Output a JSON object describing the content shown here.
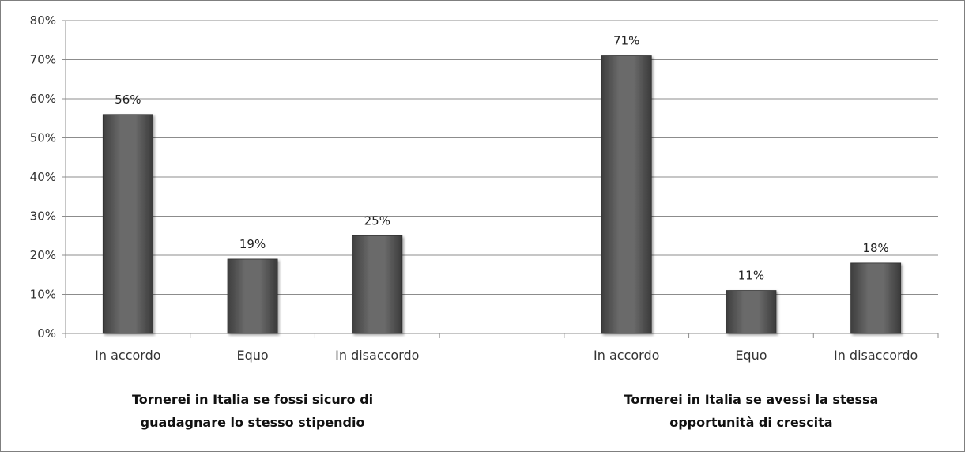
{
  "chart_data": {
    "type": "bar",
    "title": "",
    "xlabel": "",
    "ylabel": "",
    "ylim": [
      0,
      80
    ],
    "y_ticks": [
      "0%",
      "10%",
      "20%",
      "30%",
      "40%",
      "50%",
      "60%",
      "70%",
      "80%"
    ],
    "grid": true,
    "legend": "none",
    "bar_color": "#5f5f5f",
    "groups": [
      {
        "title_lines": [
          "Tornerei in Italia se fossi sicuro di",
          "guadagnare lo stesso stipendio"
        ],
        "categories": [
          "In accordo",
          "Equo",
          "In disaccordo"
        ],
        "values": [
          56,
          19,
          25
        ],
        "labels": [
          "56%",
          "19%",
          "25%"
        ]
      },
      {
        "title_lines": [
          "Tornerei in Italia se avessi la stessa",
          "opportunità di crescita"
        ],
        "categories": [
          "In accordo",
          "Equo",
          "In disaccordo"
        ],
        "values": [
          71,
          11,
          18
        ],
        "labels": [
          "71%",
          "11%",
          "18%"
        ]
      }
    ]
  }
}
